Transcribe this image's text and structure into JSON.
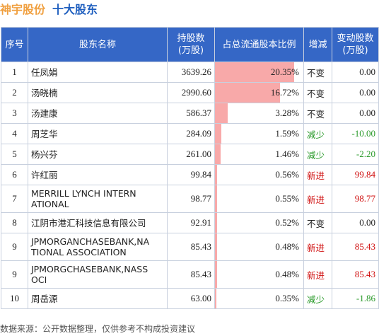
{
  "title": {
    "company": "神宇股份",
    "section": "十大股东"
  },
  "headers": {
    "seq": "序号",
    "name": "股东名称",
    "shares_l1": "持股数",
    "shares_l2": "(万股)",
    "ratio": "占总流通股本比例",
    "change": "增减",
    "delta_l1": "变动股数",
    "delta_l2": "(万股)"
  },
  "rows": [
    {
      "seq": "1",
      "name": "任凤娟",
      "shares": "3639.26",
      "ratio": "20.35%",
      "ratio_value": 20.35,
      "change": "不变",
      "change_type": "unchanged",
      "delta": "0.00"
    },
    {
      "seq": "2",
      "name": "汤晓楠",
      "shares": "2990.60",
      "ratio": "16.72%",
      "ratio_value": 16.72,
      "change": "不变",
      "change_type": "unchanged",
      "delta": "0.00"
    },
    {
      "seq": "3",
      "name": "汤建康",
      "shares": "586.37",
      "ratio": "3.28%",
      "ratio_value": 3.28,
      "change": "不变",
      "change_type": "unchanged",
      "delta": "0.00"
    },
    {
      "seq": "4",
      "name": "周芝华",
      "shares": "284.09",
      "ratio": "1.59%",
      "ratio_value": 1.59,
      "change": "减少",
      "change_type": "dec",
      "delta": "-10.00"
    },
    {
      "seq": "5",
      "name": "杨兴芬",
      "shares": "261.00",
      "ratio": "1.46%",
      "ratio_value": 1.46,
      "change": "减少",
      "change_type": "dec",
      "delta": "-2.20"
    },
    {
      "seq": "6",
      "name": "许红丽",
      "shares": "99.84",
      "ratio": "0.56%",
      "ratio_value": 0.56,
      "change": "新进",
      "change_type": "new",
      "delta": "99.84"
    },
    {
      "seq": "7",
      "name": "MERRILL LYNCH INTERNATIONAL",
      "name_l1": "MERRILL LYNCH INTERN",
      "name_l2": "ATIONAL",
      "shares": "98.77",
      "ratio": "0.55%",
      "ratio_value": 0.55,
      "change": "新进",
      "change_type": "new",
      "delta": "98.77"
    },
    {
      "seq": "8",
      "name": "江阴市港汇科技信息有限公司",
      "shares": "92.91",
      "ratio": "0.52%",
      "ratio_value": 0.52,
      "change": "不变",
      "change_type": "unchanged",
      "delta": "0.00"
    },
    {
      "seq": "9",
      "name": "JPMORGANCHASEBANK,NATIONAL ASSOCIATION",
      "name_l1": "JPMORGANCHASEBANK,NA",
      "name_l2": "TIONAL ASSOCIATION",
      "shares": "85.43",
      "ratio": "0.48%",
      "ratio_value": 0.48,
      "change": "新进",
      "change_type": "new",
      "delta": "85.43"
    },
    {
      "seq": "9",
      "name": "JPMORGCHASEBANK,NASSOCI",
      "name_l1": "JPMORGCHASEBANK,NASS",
      "name_l2": "OCI",
      "shares": "85.43",
      "ratio": "0.48%",
      "ratio_value": 0.48,
      "change": "新进",
      "change_type": "new",
      "delta": "85.43"
    },
    {
      "seq": "10",
      "name": "周岳源",
      "shares": "63.00",
      "ratio": "0.35%",
      "ratio_value": 0.35,
      "change": "减少",
      "change_type": "dec",
      "delta": "-1.86"
    }
  ],
  "colors": {
    "header_bg": "#3567c6",
    "bar": "#f8a9a9",
    "increase": "#d01010",
    "decrease": "#2a9a2a",
    "title_company": "#f0a040",
    "title_section": "#1f5fbf"
  },
  "footer": "数据来源：公开数据整理，仅供参考不构成投资建议"
}
